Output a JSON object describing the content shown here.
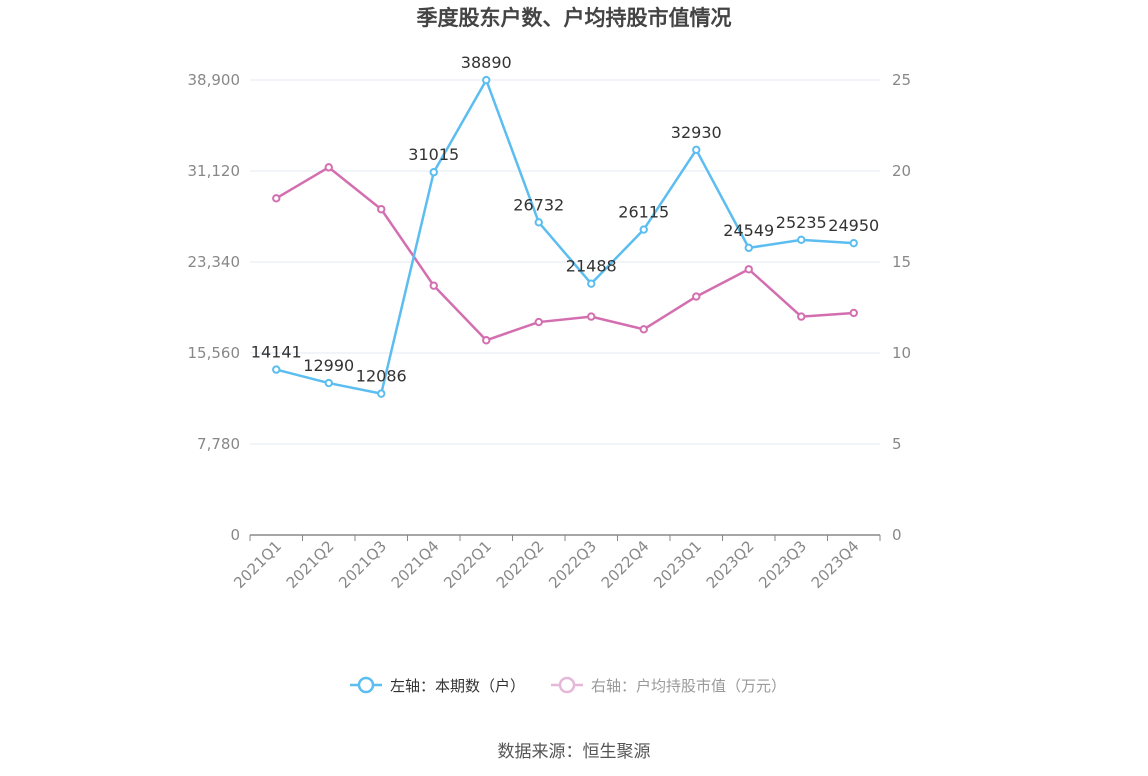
{
  "chart_data": {
    "type": "line",
    "title": "季度股东户数、户均持股市值情况",
    "categories": [
      "2021Q1",
      "2021Q2",
      "2021Q3",
      "2021Q4",
      "2022Q1",
      "2022Q2",
      "2022Q3",
      "2022Q4",
      "2023Q1",
      "2023Q2",
      "2023Q3",
      "2023Q4"
    ],
    "left_axis": {
      "ylim": [
        0,
        38900
      ],
      "ticks": [
        "0",
        "7,780",
        "15,560",
        "23,340",
        "31,120",
        "38,900"
      ]
    },
    "right_axis": {
      "ylim": [
        0,
        25
      ],
      "ticks": [
        "0",
        "5",
        "10",
        "15",
        "20",
        "25"
      ]
    },
    "series": [
      {
        "name": "左轴：本期数（户）",
        "axis": "left",
        "color": "#5bbdf0",
        "values": [
          14141,
          12990,
          12086,
          31015,
          38890,
          26732,
          21488,
          26115,
          32930,
          24549,
          25235,
          24950
        ],
        "labels": [
          "14141",
          "12990",
          "12086",
          "31015",
          "38890",
          "26732",
          "21488",
          "26115",
          "32930",
          "24549",
          "25235",
          "24950"
        ]
      },
      {
        "name": "右轴：户均持股市值（万元）",
        "axis": "right",
        "color": "#d36fb0",
        "values": [
          18.5,
          20.2,
          17.9,
          13.7,
          10.7,
          11.7,
          12.0,
          11.3,
          13.1,
          14.6,
          12.0,
          12.2
        ]
      }
    ],
    "grid": true,
    "legend_position": "bottom"
  },
  "source": "数据来源：恒生聚源"
}
